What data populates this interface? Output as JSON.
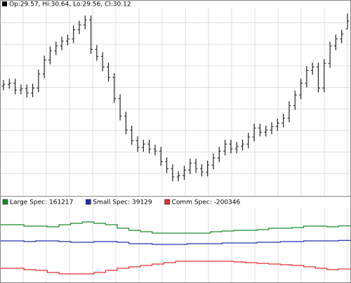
{
  "chart_data": [
    {
      "type": "ohlc",
      "header": "Op:29.57, Hi:30.64, Lo:29.56, Cl:30.12",
      "color": "#222222",
      "ylim": [
        18,
        31
      ],
      "yticks": [
        19.5,
        21,
        22.5,
        24,
        25.5,
        27,
        28.5,
        30
      ],
      "grid": true,
      "open": [
        25.6,
        25.71,
        25.8,
        25.32,
        25.41,
        25.12,
        25.46,
        26.44,
        27.41,
        28.05,
        28.39,
        28.73,
        28.88,
        29.51,
        29.85,
        30.2,
        28.15,
        27.66,
        26.93,
        26.2,
        24.73,
        23.51,
        22.54,
        21.8,
        21.32,
        21.56,
        21.22,
        21.07,
        20.34,
        19.85,
        19.27,
        19.37,
        19.76,
        20.24,
        19.85,
        19.61,
        20.1,
        20.59,
        21.07,
        21.56,
        21.22,
        21.41,
        21.56,
        22.05,
        22.68,
        22.39,
        22.54,
        22.78,
        23.02,
        23.37,
        24.24,
        24.98,
        25.8,
        26.68,
        26.93,
        25.46,
        27.17,
        28.39,
        28.88,
        29.57
      ],
      "high": [
        26.01,
        26.1,
        26.1,
        25.71,
        25.71,
        25.76,
        26.74,
        27.71,
        28.35,
        28.69,
        29.03,
        29.18,
        29.81,
        30.15,
        30.5,
        30.5,
        28.45,
        27.96,
        27.23,
        26.5,
        25.03,
        23.81,
        22.84,
        22.1,
        21.86,
        21.86,
        21.52,
        21.37,
        20.64,
        20.15,
        19.67,
        20.06,
        20.54,
        20.54,
        20.15,
        20.4,
        20.89,
        21.37,
        21.86,
        21.86,
        21.71,
        21.86,
        22.35,
        22.98,
        22.98,
        22.84,
        23.08,
        23.32,
        23.67,
        24.54,
        25.28,
        26.1,
        26.98,
        27.23,
        27.23,
        27.47,
        28.69,
        29.18,
        29.52,
        30.64
      ],
      "low": [
        25.3,
        25.41,
        25.02,
        25.02,
        24.82,
        24.82,
        25.16,
        26.14,
        27.11,
        27.75,
        28.09,
        28.43,
        28.58,
        29.21,
        29.55,
        27.85,
        27.36,
        26.63,
        25.9,
        24.43,
        23.21,
        22.24,
        21.5,
        21.02,
        21.02,
        20.92,
        20.77,
        20.04,
        19.55,
        18.97,
        18.97,
        19.07,
        19.46,
        19.55,
        19.31,
        19.31,
        19.8,
        20.29,
        20.77,
        20.92,
        20.92,
        21.11,
        21.26,
        21.75,
        22.09,
        22.09,
        22.24,
        22.48,
        22.72,
        23.07,
        23.94,
        24.68,
        25.5,
        26.38,
        25.16,
        25.16,
        26.87,
        28.09,
        28.58,
        29.56
      ],
      "close": [
        25.71,
        25.8,
        25.32,
        25.41,
        25.12,
        25.46,
        26.44,
        27.41,
        28.05,
        28.39,
        28.73,
        28.88,
        29.51,
        29.85,
        30.2,
        28.15,
        27.66,
        26.93,
        26.2,
        24.73,
        23.51,
        22.54,
        21.8,
        21.32,
        21.56,
        21.22,
        21.07,
        20.34,
        19.85,
        19.27,
        19.37,
        19.76,
        20.24,
        19.85,
        19.61,
        20.1,
        20.59,
        21.07,
        21.56,
        21.22,
        21.41,
        21.56,
        22.05,
        22.68,
        22.39,
        22.54,
        22.78,
        23.02,
        23.37,
        24.24,
        24.98,
        25.8,
        26.68,
        26.93,
        25.46,
        27.17,
        28.39,
        28.88,
        29.22,
        30.12
      ]
    },
    {
      "type": "step",
      "ylim": [
        -300000,
        300000
      ],
      "series": [
        {
          "name": "Large Spec: 161217",
          "color": "#1a8a2a",
          "values": [
            170600,
            170600,
            158800,
            158800,
            152950,
            170600,
            182350,
            194100,
            182350,
            170600,
            141200,
            123500,
            111800,
            100000,
            100000,
            100000,
            100000,
            100000,
            111800,
            117650,
            123500,
            123500,
            129400,
            141200,
            141200,
            147050,
            158800,
            158800,
            152950,
            161217
          ]
        },
        {
          "name": "Small Spec: 39129",
          "color": "#2233aa",
          "values": [
            35300,
            35300,
            29400,
            35300,
            35300,
            29400,
            23500,
            23500,
            29400,
            29400,
            23500,
            11800,
            11800,
            5900,
            5900,
            5900,
            11800,
            11800,
            11800,
            17650,
            17650,
            17650,
            23500,
            23500,
            29400,
            29400,
            35300,
            35300,
            35300,
            39129
          ]
        },
        {
          "name": "Comm Spec: -200346",
          "color": "#e03030",
          "values": [
            -194100,
            -194100,
            -205900,
            -211750,
            -229400,
            -241150,
            -241150,
            -241150,
            -229400,
            -211750,
            -194100,
            -182350,
            -170600,
            -158800,
            -147050,
            -135300,
            -135300,
            -135300,
            -135300,
            -135300,
            -141200,
            -147050,
            -152950,
            -158800,
            -164700,
            -170600,
            -182350,
            -194100,
            -205900,
            -200346
          ]
        }
      ]
    }
  ]
}
